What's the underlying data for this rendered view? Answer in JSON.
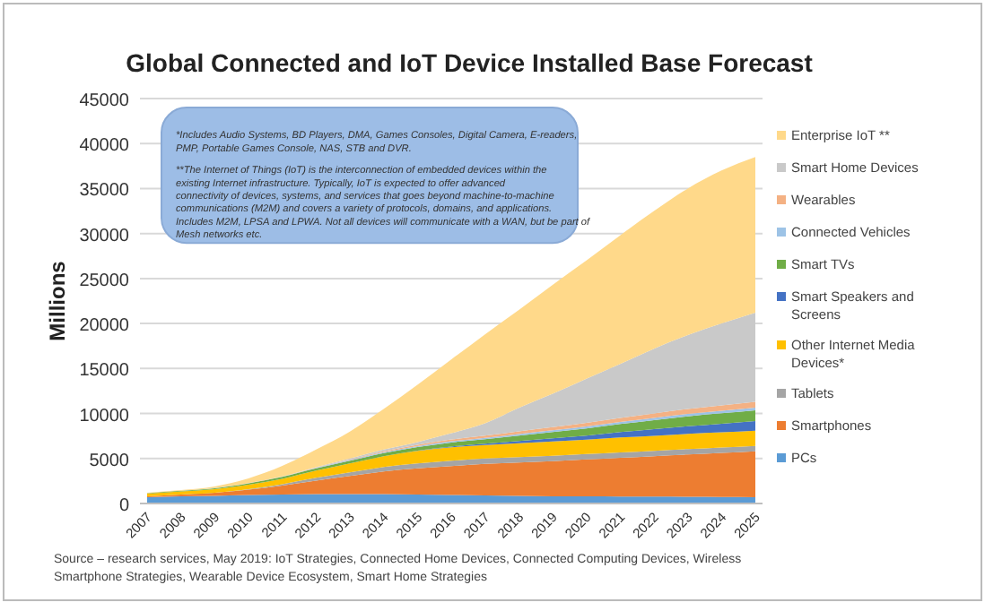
{
  "chart_data": {
    "type": "area",
    "stacked": true,
    "title": "Global Connected and IoT Device Installed Base Forecast",
    "ylabel": "Millions",
    "categories": [
      "2007",
      "2008",
      "2009",
      "2010",
      "2011",
      "2012",
      "2013",
      "2014",
      "2015",
      "2016",
      "2017",
      "2018",
      "2019",
      "2020",
      "2021",
      "2022",
      "2023",
      "2024",
      "2025"
    ],
    "series": [
      {
        "name": "PCs",
        "color": "#5b9bd5",
        "values": [
          700,
          800,
          850,
          950,
          1000,
          1050,
          1050,
          1050,
          1000,
          950,
          900,
          850,
          800,
          800,
          780,
          760,
          740,
          720,
          700
        ]
      },
      {
        "name": "Smartphones",
        "color": "#ed7d31",
        "values": [
          100,
          200,
          350,
          600,
          1000,
          1500,
          2000,
          2500,
          2900,
          3200,
          3500,
          3700,
          3900,
          4100,
          4300,
          4500,
          4700,
          4900,
          5100
        ]
      },
      {
        "name": "Tablets",
        "color": "#a5a5a5",
        "values": [
          0,
          0,
          0,
          50,
          150,
          300,
          400,
          500,
          550,
          600,
          600,
          600,
          600,
          600,
          600,
          600,
          600,
          600,
          600
        ]
      },
      {
        "name": "Other Internet Media Devices*",
        "color": "#ffc000",
        "values": [
          300,
          350,
          400,
          500,
          600,
          800,
          1000,
          1200,
          1400,
          1500,
          1500,
          1550,
          1600,
          1600,
          1650,
          1650,
          1700,
          1700,
          1700
        ]
      },
      {
        "name": "Smart Speakers and Screens",
        "color": "#4472c4",
        "values": [
          0,
          0,
          0,
          0,
          0,
          0,
          0,
          0,
          20,
          80,
          150,
          250,
          350,
          450,
          600,
          750,
          850,
          950,
          1050
        ]
      },
      {
        "name": "Smart TVs",
        "color": "#70ad47",
        "values": [
          50,
          70,
          100,
          150,
          200,
          250,
          300,
          350,
          400,
          450,
          500,
          600,
          700,
          800,
          900,
          1000,
          1100,
          1150,
          1200
        ]
      },
      {
        "name": "Connected Vehicles",
        "color": "#9dc3e6",
        "values": [
          0,
          0,
          10,
          20,
          30,
          50,
          70,
          90,
          110,
          130,
          150,
          170,
          190,
          210,
          230,
          250,
          270,
          290,
          310
        ]
      },
      {
        "name": "Wearables",
        "color": "#f4b183",
        "values": [
          0,
          0,
          0,
          0,
          10,
          30,
          60,
          100,
          150,
          200,
          250,
          300,
          350,
          400,
          450,
          500,
          550,
          600,
          650
        ]
      },
      {
        "name": "Smart Home Devices",
        "color": "#c9c9c9",
        "values": [
          0,
          0,
          0,
          0,
          20,
          60,
          120,
          200,
          300,
          700,
          1350,
          2600,
          3700,
          4900,
          6000,
          7200,
          8200,
          9100,
          9900
        ]
      },
      {
        "name": "Enterprise IoT **",
        "color": "#ffd98a",
        "values": [
          50,
          80,
          190,
          530,
          1170,
          1960,
          3000,
          4510,
          6370,
          8190,
          9900,
          10880,
          12110,
          13140,
          14290,
          15290,
          16290,
          16990,
          17290
        ]
      }
    ],
    "ylim": [
      0,
      45000
    ],
    "yticks": [
      0,
      5000,
      10000,
      15000,
      20000,
      25000,
      30000,
      35000,
      40000,
      45000
    ],
    "grid": "y",
    "legend": "right",
    "annotations": [
      "*Includes Audio Systems, BD Players, DMA, Games Consoles, Digital Camera, E-readers, PMP, Portable Games Console, NAS, STB and DVR.",
      "**The Internet of Things (IoT) is the interconnection of embedded devices within the existing Internet infrastructure. Typically, IoT is expected to offer advanced connectivity of devices, systems, and services that goes beyond machine-to-machine communications (M2M) and covers a variety of protocols, domains, and applications. Includes M2M, LPSA and LPWA. Not all devices will communicate with a WAN, but be part of Mesh networks etc.",
      "Source – research services, May 2019: IoT Strategies, Connected Home Devices, Connected Computing Devices, Wireless Smartphone Strategies, Wearable Device Ecosystem, Smart Home Strategies"
    ]
  }
}
